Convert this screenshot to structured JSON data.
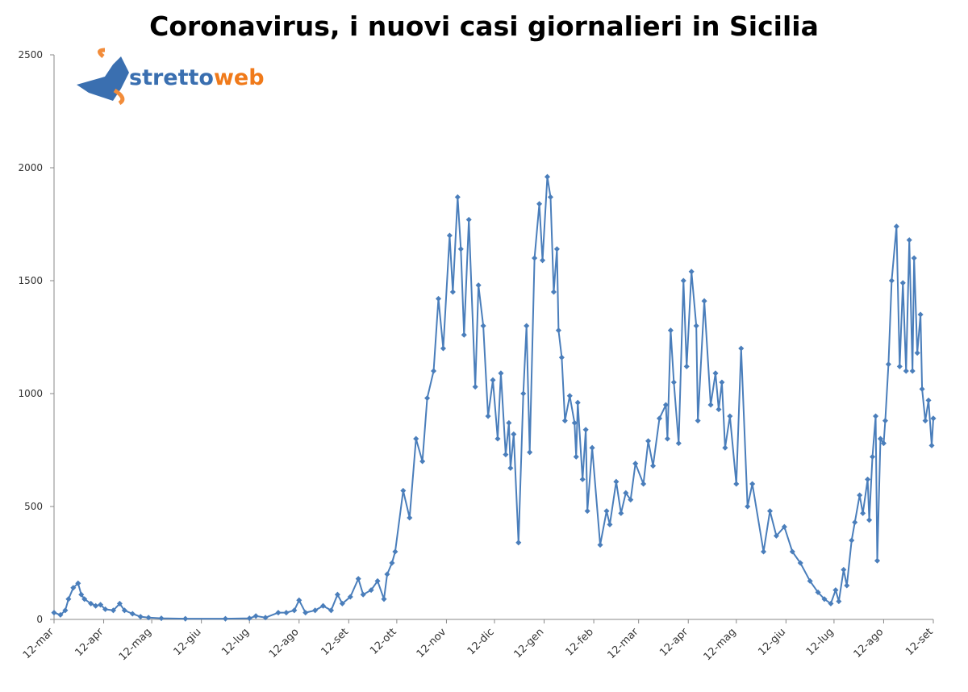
{
  "chart_data": {
    "type": "line",
    "title": "Coronavirus, i nuovi casi giornalieri in Sicilia",
    "logo": [
      "stretto",
      "web"
    ],
    "x": [
      0,
      4,
      7,
      9,
      12,
      15,
      17,
      19,
      23,
      26,
      29,
      32,
      37,
      41,
      44,
      49,
      54,
      59,
      67,
      82,
      107,
      122,
      126,
      132,
      140,
      145,
      150,
      153,
      157,
      163,
      168,
      173,
      177,
      180,
      185,
      190,
      193,
      198,
      202,
      206,
      208,
      211,
      213,
      218,
      222,
      226,
      230,
      233,
      237,
      240,
      243,
      247,
      249,
      252,
      254,
      256,
      259,
      263,
      265,
      268,
      271,
      274,
      277,
      279,
      282,
      284,
      285,
      287,
      290,
      293,
      295,
      297,
      300,
      303,
      305,
      308,
      310,
      312,
      314,
      315,
      317,
      319,
      322,
      325,
      326,
      327,
      330,
      332,
      333,
      336,
      341,
      345,
      347,
      351,
      354,
      357,
      360,
      363,
      368,
      371,
      374,
      378,
      382,
      383,
      385,
      387,
      390,
      393,
      395,
      398,
      401,
      402,
      406,
      410,
      413,
      415,
      417,
      419,
      422,
      426,
      429,
      433,
      436,
      443,
      447,
      451,
      456,
      461,
      466,
      472,
      477,
      481,
      485,
      488,
      490,
      493,
      495,
      498,
      500,
      503,
      505,
      508,
      509,
      511,
      513,
      514,
      516,
      518,
      519,
      521,
      523,
      526,
      528,
      530,
      532,
      534,
      536,
      537,
      539,
      541,
      542,
      544,
      546,
      548,
      549
    ],
    "series": [
      {
        "name": "nuovi casi",
        "color": "#4a7ebb",
        "values": [
          30,
          20,
          40,
          90,
          140,
          160,
          110,
          90,
          70,
          60,
          65,
          45,
          40,
          70,
          40,
          25,
          12,
          8,
          5,
          3,
          3,
          5,
          15,
          8,
          30,
          30,
          40,
          85,
          30,
          40,
          60,
          40,
          110,
          70,
          100,
          180,
          110,
          130,
          170,
          90,
          200,
          250,
          300,
          570,
          450,
          800,
          700,
          980,
          1100,
          1420,
          1200,
          1700,
          1450,
          1870,
          1640,
          1260,
          1770,
          1030,
          1480,
          1300,
          900,
          1060,
          800,
          1090,
          730,
          870,
          670,
          820,
          340,
          1000,
          1300,
          740,
          1600,
          1840,
          1590,
          1960,
          1870,
          1450,
          1640,
          1280,
          1160,
          880,
          990,
          870,
          720,
          960,
          620,
          840,
          480,
          760,
          330,
          480,
          420,
          610,
          470,
          560,
          530,
          690,
          600,
          790,
          680,
          890,
          950,
          800,
          1280,
          1050,
          780,
          1500,
          1120,
          1540,
          1300,
          880,
          1410,
          950,
          1090,
          930,
          1050,
          760,
          900,
          600,
          1200,
          500,
          600,
          300,
          480,
          370,
          410,
          300,
          250,
          170,
          120,
          90,
          70,
          130,
          80,
          220,
          150,
          350,
          430,
          550,
          470,
          620,
          440,
          720,
          900,
          260,
          800,
          780,
          880,
          1130,
          1500,
          1740,
          1120,
          1490,
          1100,
          1680,
          1100,
          1600,
          1180,
          1350,
          1020,
          880,
          970,
          770,
          890
        ]
      }
    ],
    "xlim": [
      0,
      549
    ],
    "xticks": [
      {
        "value": 0,
        "label": "12-mar"
      },
      {
        "value": 31,
        "label": "12-apr"
      },
      {
        "value": 61,
        "label": "12-mag"
      },
      {
        "value": 92,
        "label": "12-giu"
      },
      {
        "value": 122,
        "label": "12-lug"
      },
      {
        "value": 153,
        "label": "12-ago"
      },
      {
        "value": 184,
        "label": "12-set"
      },
      {
        "value": 214,
        "label": "12-ott"
      },
      {
        "value": 245,
        "label": "12-nov"
      },
      {
        "value": 275,
        "label": "12-dic"
      },
      {
        "value": 306,
        "label": "12-gen"
      },
      {
        "value": 337,
        "label": "12-feb"
      },
      {
        "value": 365,
        "label": "12-mar"
      },
      {
        "value": 396,
        "label": "12-apr"
      },
      {
        "value": 426,
        "label": "12-mag"
      },
      {
        "value": 457,
        "label": "12-giu"
      },
      {
        "value": 487,
        "label": "12-lug"
      },
      {
        "value": 518,
        "label": "12-ago"
      },
      {
        "value": 549,
        "label": "12-set"
      }
    ],
    "ylim": [
      0,
      2500
    ],
    "yticks": [
      0,
      500,
      1000,
      1500,
      2000,
      2500
    ],
    "grid": false
  }
}
